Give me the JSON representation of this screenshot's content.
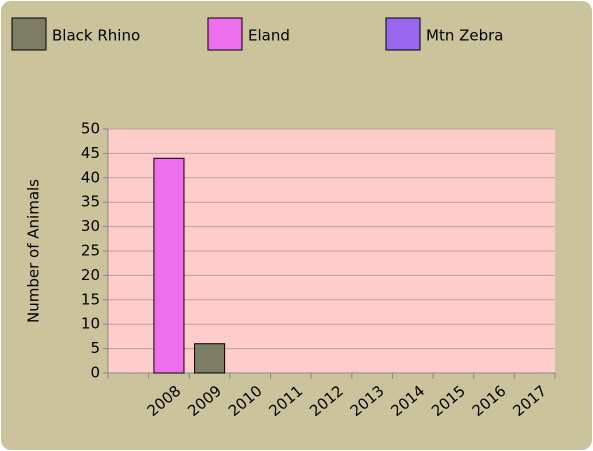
{
  "chart_data": {
    "type": "bar",
    "y_label": "Number of Animals",
    "categories": [
      null,
      "2008",
      "2009",
      "2010",
      "2011",
      "2012",
      "2013",
      "2014",
      "2015",
      "2016",
      "2017"
    ],
    "series": [
      {
        "name": "Black Rhino",
        "color": "#7d7d66",
        "values": [
          0,
          0,
          6,
          0,
          0,
          0,
          0,
          0,
          0,
          0,
          0
        ]
      },
      {
        "name": "Eland",
        "color": "#ee6fee",
        "values": [
          0,
          44,
          0,
          0,
          0,
          0,
          0,
          0,
          0,
          0,
          0
        ]
      },
      {
        "name": "Mtn Zebra",
        "color": "#9966ee",
        "values": [
          0,
          0,
          0,
          0,
          0,
          0,
          0,
          0,
          0,
          0,
          0
        ]
      }
    ],
    "ylim": [
      0,
      50
    ],
    "yticks": [
      0,
      5,
      10,
      15,
      20,
      25,
      30,
      35,
      40,
      45,
      50
    ],
    "grid": true
  }
}
